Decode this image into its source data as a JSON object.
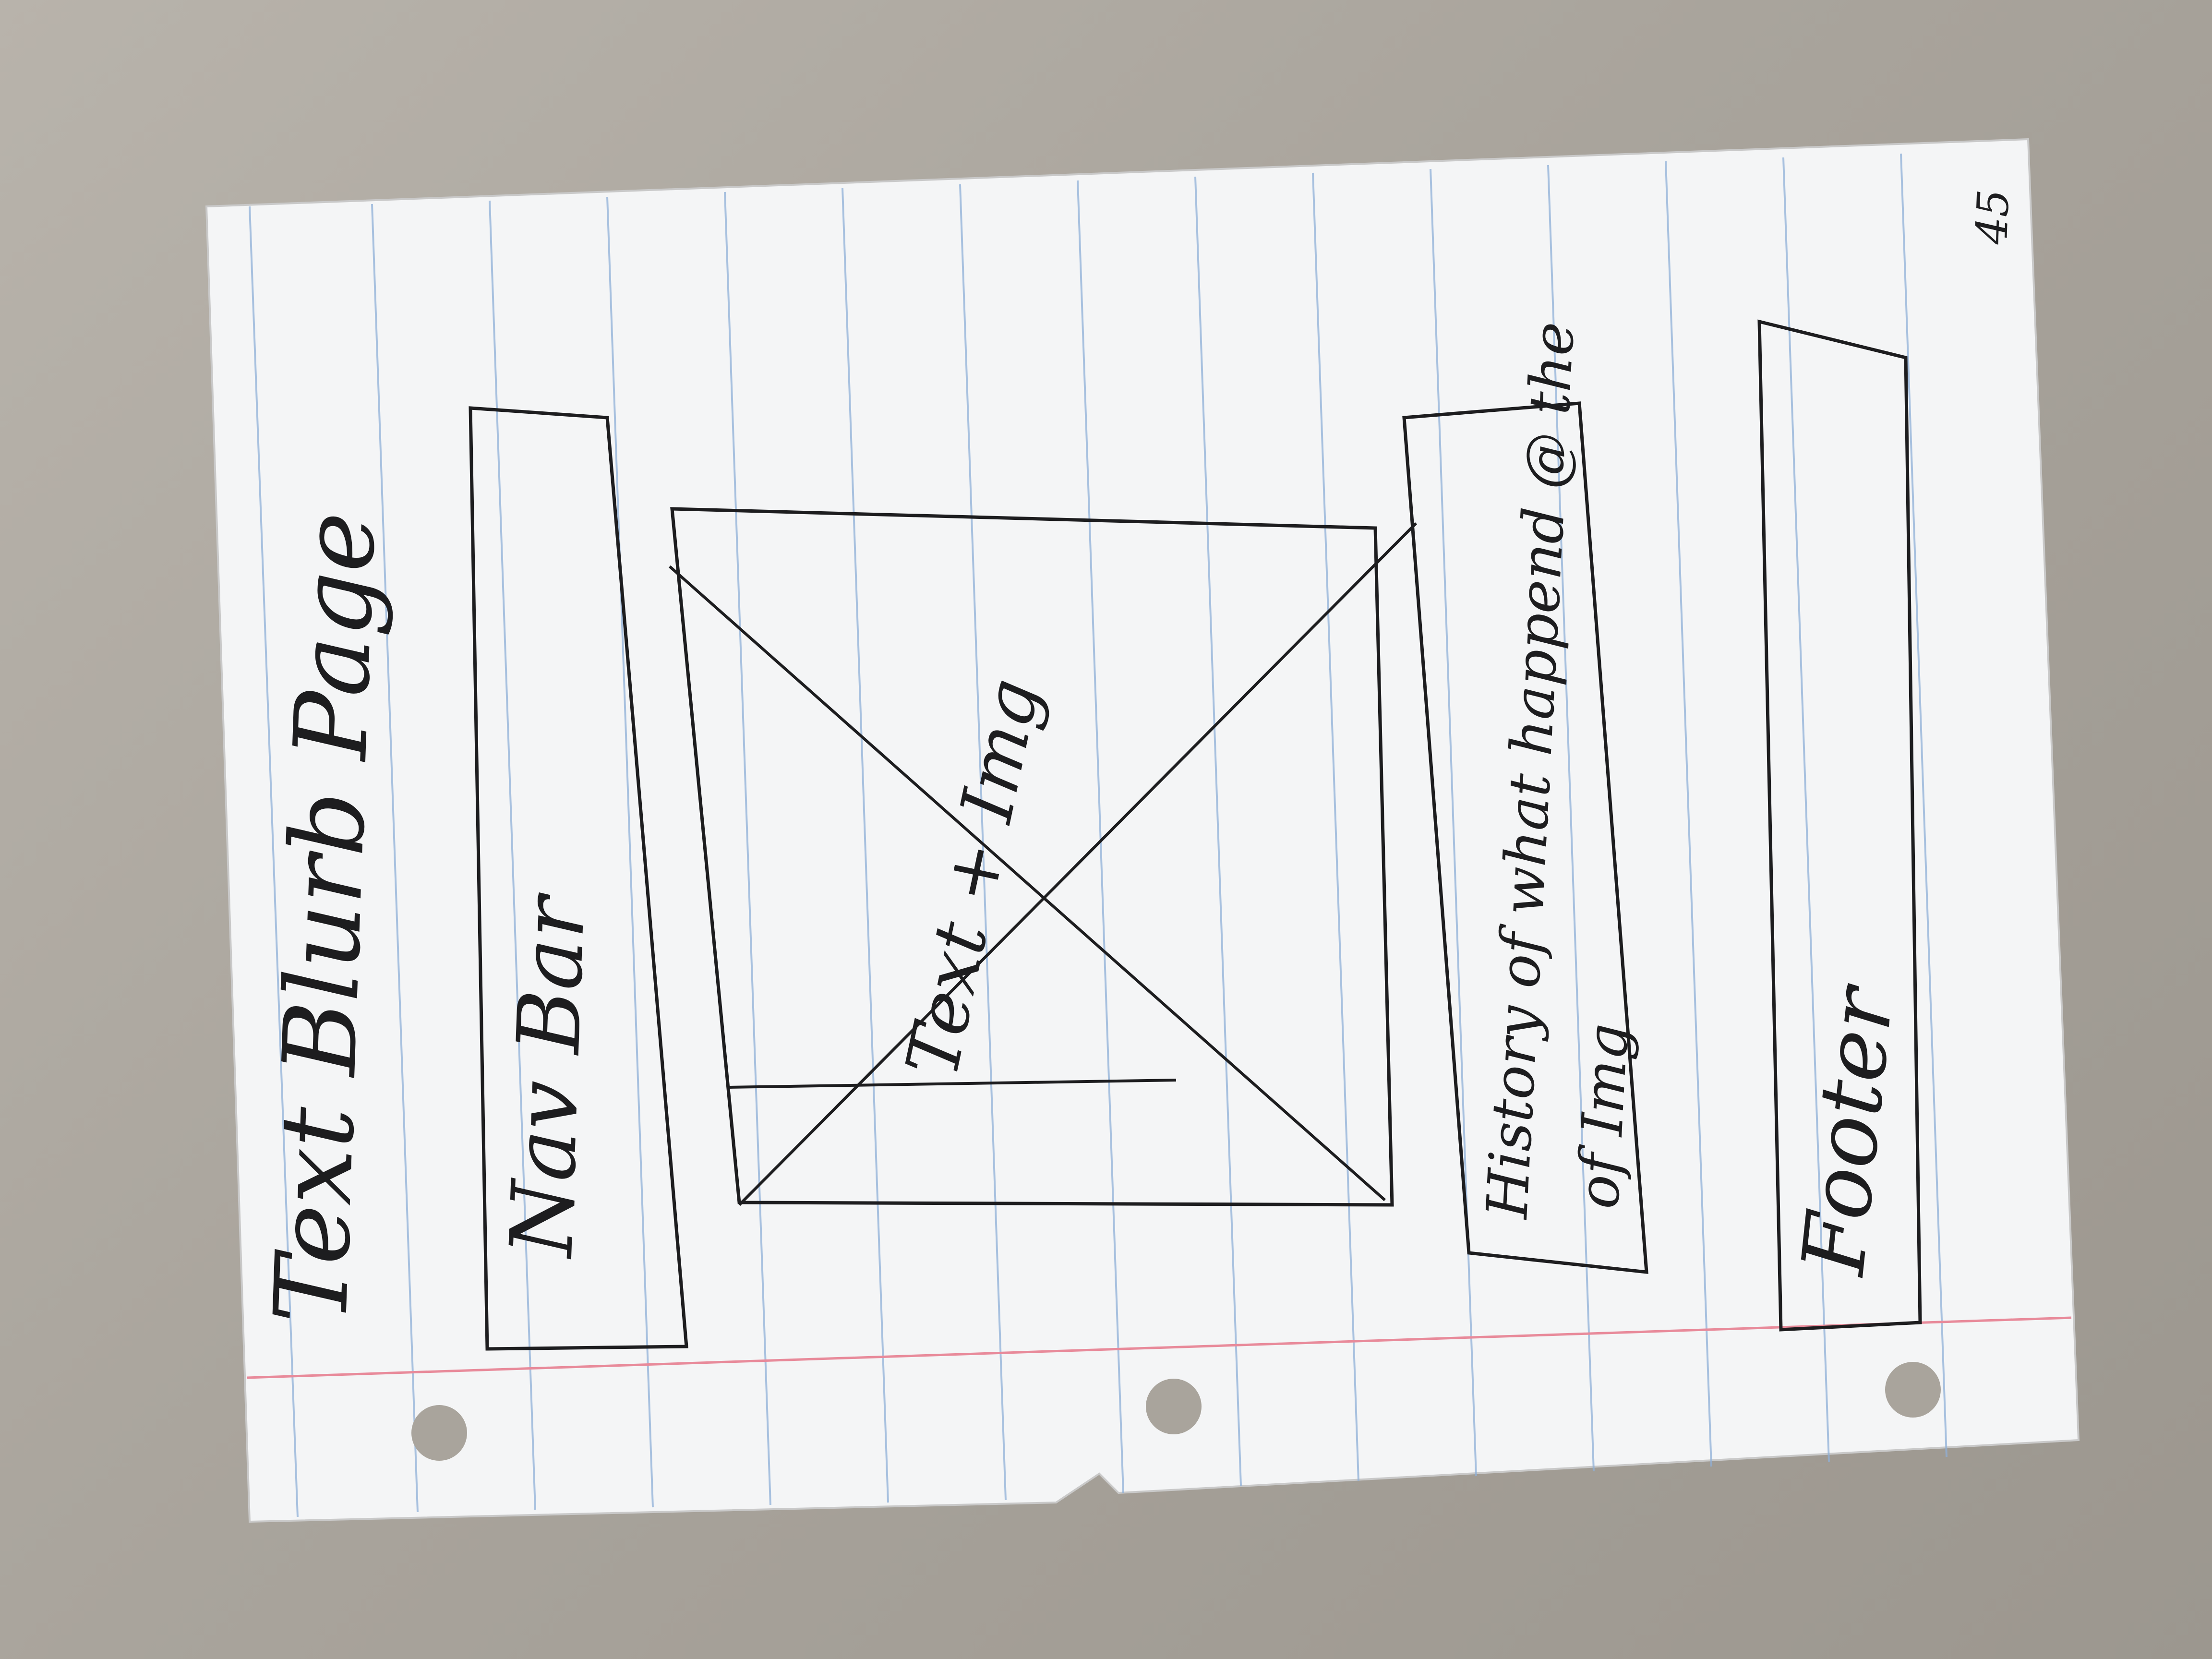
{
  "sheet": {
    "title": "Text Blurb Page",
    "page_number": "45",
    "paper_color": "#f4f5f6",
    "rule_color": "#8fb0d8",
    "margin_line_color": "#e88a9a",
    "ink_color": "#1d1d1f"
  },
  "wireframe": {
    "nav_bar": {
      "label": "Nav Bar"
    },
    "image": {
      "placeholder_icon": "crossed-box-image-placeholder",
      "caption": "Text + Img"
    },
    "text_block": {
      "line1": "History of what happend @ the",
      "line2": "of Img"
    },
    "footer": {
      "label": "Footer"
    }
  }
}
